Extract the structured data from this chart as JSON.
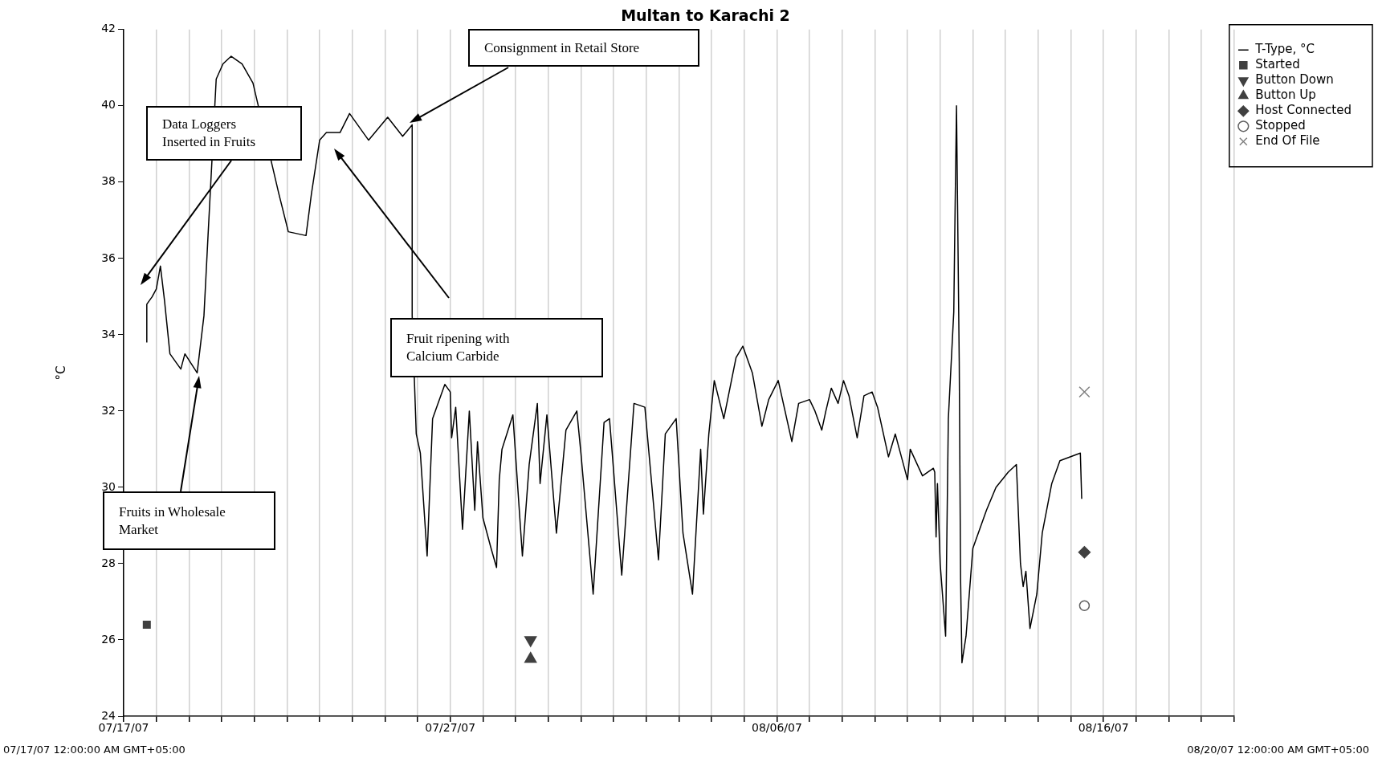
{
  "chart_data": {
    "type": "line",
    "title": "Multan to Karachi 2",
    "ylabel": "°C",
    "xlim": [
      "--07-17",
      "--08-20"
    ],
    "xticks": [
      {
        "value": "--07-17",
        "label": "07/17/07"
      },
      {
        "value": "--07-18",
        "label": null
      },
      {
        "value": "--07-19",
        "label": null
      },
      {
        "value": "--07-20",
        "label": null
      },
      {
        "value": "--07-21",
        "label": null
      },
      {
        "value": "--07-22",
        "label": null
      },
      {
        "value": "--07-23",
        "label": null
      },
      {
        "value": "--07-24",
        "label": null
      },
      {
        "value": "--07-25",
        "label": null
      },
      {
        "value": "--07-26",
        "label": null
      },
      {
        "value": "--07-27",
        "label": "07/27/07"
      },
      {
        "value": "--07-28",
        "label": null
      },
      {
        "value": "--07-29",
        "label": null
      },
      {
        "value": "--07-30",
        "label": null
      },
      {
        "value": "--07-31",
        "label": null
      },
      {
        "value": "--08-01",
        "label": null
      },
      {
        "value": "--08-02",
        "label": null
      },
      {
        "value": "--08-03",
        "label": null
      },
      {
        "value": "--08-04",
        "label": null
      },
      {
        "value": "--08-05",
        "label": null
      },
      {
        "value": "--08-06",
        "label": "08/06/07"
      },
      {
        "value": "--08-07",
        "label": null
      },
      {
        "value": "--08-08",
        "label": null
      },
      {
        "value": "--08-09",
        "label": null
      },
      {
        "value": "--08-10",
        "label": null
      },
      {
        "value": "--08-11",
        "label": null
      },
      {
        "value": "--08-12",
        "label": null
      },
      {
        "value": "--08-13",
        "label": null
      },
      {
        "value": "--08-14",
        "label": null
      },
      {
        "value": "--08-15",
        "label": null
      },
      {
        "value": "--08-16",
        "label": "08/16/07"
      },
      {
        "value": "--08-17",
        "label": null
      },
      {
        "value": "--08-18",
        "label": null
      },
      {
        "value": "--08-19",
        "label": null
      },
      {
        "value": "--08-20",
        "label": null
      }
    ],
    "ylim": [
      24,
      42
    ],
    "yticks": [
      24,
      26,
      28,
      30,
      32,
      34,
      36,
      38,
      40,
      42
    ],
    "grid": "x",
    "legend": "top right",
    "line_style": "solid",
    "series": [
      {
        "name": "T-Type, °C",
        "type": "line",
        "marker": "none",
        "color": "#000000",
        "x": [
          "--07-17T17:00",
          "--07-17T17:00",
          "--07-17T21:00",
          "--07-18T00:00",
          "--07-18T03:00",
          "--07-18T06:00",
          "--07-18T10:00",
          "--07-18T18:00",
          "--07-18T21:00",
          "--07-19T06:00",
          "--07-19T11:00",
          "--07-19T14:00",
          "--07-19T17:00",
          "--07-19T20:00",
          "--07-20T01:00",
          "--07-20T07:00",
          "--07-20T15:00",
          "--07-20T23:00",
          "--07-21T05:00",
          "--07-21T14:00",
          "--07-21T18:00",
          "--07-22T01:00",
          "--07-22T14:00",
          "--07-22T18:00",
          "--07-23T00:00",
          "--07-23T05:00",
          "--07-23T15:00",
          "--07-23T22:00",
          "--07-24T12:00",
          "--07-25T02:00",
          "--07-25T13:00",
          "--07-25T20:00",
          "--07-25T20:00",
          "--07-25T23:00",
          "--07-26T02:00",
          "--07-26T07:00",
          "--07-26T11:00",
          "--07-26T20:00",
          "--07-27T00:00",
          "--07-27T01:00",
          "--07-27T04:00",
          "--07-27T09:00",
          "--07-27T14:00",
          "--07-27T18:00",
          "--07-27T20:00",
          "--07-28T00:00",
          "--07-28T06:00",
          "--07-28T10:00",
          "--07-28T12:00",
          "--07-28T14:00",
          "--07-28T22:00",
          "--07-29T05:00",
          "--07-29T10:00",
          "--07-29T16:00",
          "--07-29T18:00",
          "--07-29T23:00",
          "--07-30T06:00",
          "--07-30T13:00",
          "--07-30T21:00",
          "--07-31T00:00",
          "--07-31T09:00",
          "--07-31T17:00",
          "--07-31T21:00",
          "--07-31T23:00",
          "--08-01T06:00",
          "--08-01T15:00",
          "--08-01T23:00",
          "--08-02T09:00",
          "--08-02T14:00",
          "--08-02T22:00",
          "--08-03T03:00",
          "--08-03T10:00",
          "--08-03T16:00",
          "--08-03T18:00",
          "--08-03T22:00",
          "--08-04T02:00",
          "--08-04T09:00",
          "--08-04T18:00",
          "--08-04T23:00",
          "--08-05T06:00",
          "--08-05T13:00",
          "--08-05T18:00",
          "--08-06T01:00",
          "--08-06T11:00",
          "--08-06T16:00",
          "--08-07T00:00",
          "--08-07T04:00",
          "--08-07T09:00",
          "--08-07T12:00",
          "--08-07T16:00",
          "--08-07T21:00",
          "--08-08T01:00",
          "--08-08T05:00",
          "--08-08T11:00",
          "--08-08T16:00",
          "--08-08T22:00",
          "--08-09T02:00",
          "--08-09T10:00",
          "--08-09T15:00",
          "--08-10T00:00",
          "--08-10T02:00",
          "--08-10T11:00",
          "--08-10T19:00",
          "--08-10T20:00",
          "--08-10T21:00",
          "--08-10T22:00",
          "--08-11T00:00",
          "--08-11T04:00",
          "--08-11T06:00",
          "--08-11T10:00",
          "--08-11T11:00",
          "--08-11T12:00",
          "--08-11T14:00",
          "--08-11T15:00",
          "--08-11T16:00",
          "--08-11T19:00",
          "--08-12T00:00",
          "--08-12T10:00",
          "--08-12T17:00",
          "--08-13T02:00",
          "--08-13T08:00",
          "--08-13T11:00",
          "--08-13T13:00",
          "--08-13T15:00",
          "--08-13T18:00",
          "--08-13T23:00",
          "--08-14T03:00",
          "--08-14T10:00",
          "--08-14T16:00",
          "--08-15T07:00",
          "--08-15T08:00"
        ],
        "values": [
          33.8,
          34.8,
          35.0,
          35.2,
          35.8,
          34.9,
          33.5,
          33.1,
          33.5,
          33.0,
          34.5,
          36.6,
          null,
          40.7,
          41.1,
          41.3,
          41.1,
          40.6,
          null,
          null,
          37.7,
          36.7,
          36.6,
          37.7,
          39.1,
          39.3,
          39.3,
          39.8,
          39.1,
          39.7,
          39.2,
          39.5,
          34.5,
          31.4,
          30.9,
          28.2,
          31.8,
          32.7,
          32.5,
          31.3,
          32.1,
          28.9,
          32.0,
          29.4,
          31.2,
          29.2,
          28.4,
          27.9,
          30.2,
          31.0,
          31.9,
          28.2,
          30.6,
          32.2,
          30.1,
          31.9,
          28.8,
          31.5,
          32.0,
          30.9,
          27.2,
          31.7,
          31.8,
          30.9,
          27.7,
          32.2,
          32.1,
          28.1,
          31.4,
          31.8,
          28.8,
          27.2,
          31.0,
          29.3,
          31.4,
          32.8,
          31.8,
          33.4,
          33.7,
          33.0,
          31.6,
          32.3,
          32.8,
          31.2,
          32.2,
          32.3,
          32.0,
          31.5,
          32.0,
          32.6,
          32.2,
          32.8,
          32.4,
          31.3,
          32.4,
          32.5,
          32.1,
          30.8,
          31.4,
          30.2,
          31.0,
          30.3,
          30.5,
          30.4,
          28.7,
          30.1,
          28.0,
          26.1,
          31.8,
          34.6,
          37.4,
          40.0,
          33.3,
          27.6,
          25.4,
          26.1,
          28.4,
          29.4,
          30.0,
          30.4,
          30.6,
          28.0,
          27.4,
          27.8,
          26.3,
          27.2,
          28.8,
          30.1,
          30.7,
          30.9,
          29.7
        ]
      },
      {
        "name": "Started",
        "type": "scatter",
        "marker": "square",
        "color": "#404040",
        "x": [
          "--07-17T17:00"
        ],
        "values": [
          26.4
        ]
      },
      {
        "name": "Button Down",
        "type": "scatter",
        "marker": "triangle-down",
        "color": "#404040",
        "x": [
          "--07-29T11:00"
        ],
        "values": [
          26.0
        ]
      },
      {
        "name": "Button Up",
        "type": "scatter",
        "marker": "triangle",
        "color": "#404040",
        "x": [
          "--07-29T11:00"
        ],
        "values": [
          25.5
        ]
      },
      {
        "name": "Host Connected",
        "type": "scatter",
        "marker": "diamond",
        "color": "#404040",
        "x": [
          "--08-15T10:00"
        ],
        "values": [
          28.3
        ]
      },
      {
        "name": "Stopped",
        "type": "scatter",
        "marker": "circle",
        "color": "#606060",
        "x": [
          "--08-15T10:00"
        ],
        "values": [
          26.9
        ]
      },
      {
        "name": "End Of File",
        "type": "scatter",
        "marker": "cross",
        "color": "#808080",
        "x": [
          "--08-15T10:00"
        ],
        "values": [
          32.5
        ]
      }
    ],
    "annotations": [
      "Data Loggers Inserted in Fruits",
      "Fruits in Wholesale Market",
      "Fruit ripening with Calcium Carbide",
      "Consignment in Retail Store",
      "07/17/07 12:00:00 AM GMT+05:00",
      "08/20/07 12:00:00 AM GMT+05:00"
    ]
  }
}
